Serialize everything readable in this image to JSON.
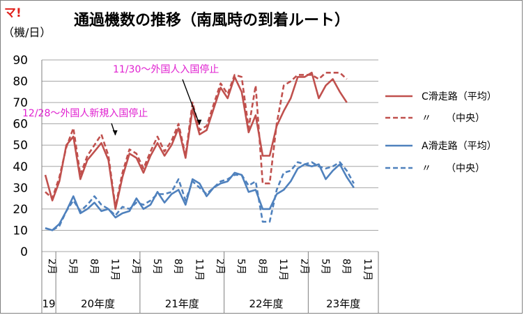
{
  "logo": "マ!",
  "unit": "（機/日）",
  "colors": {
    "c_runway": "#c0504d",
    "a_runway": "#4f81bd",
    "annotation": "#e020d0",
    "grid": "#a6a6a6"
  },
  "chart_data": {
    "type": "line",
    "title": "通過機数の推移（南風時の到着ルート）",
    "ylabel": "（機/日）",
    "ylim": [
      0,
      90
    ],
    "ytick_step": 10,
    "grid": true,
    "legend_position": "right",
    "x_tick_labels": [
      "2月",
      "5月",
      "8月",
      "11月",
      "2月",
      "5月",
      "8月",
      "11月",
      "2月",
      "5月",
      "8月",
      "11月",
      "2月",
      "5月",
      "8月",
      "11月"
    ],
    "fiscal_years": [
      "19",
      "20年度",
      "21年度",
      "22年度",
      "23年度"
    ],
    "months_index_note": "index 0 = Feb 2020, index 47 = Jan 2024",
    "series": [
      {
        "name": "C滑走路（平均）",
        "style": "solid",
        "color": "#c0504d",
        "values": [
          36,
          24,
          33,
          50,
          54,
          34,
          43,
          47,
          51,
          43,
          20,
          35,
          46,
          44,
          37,
          45,
          51,
          45,
          50,
          58,
          44,
          67,
          55,
          57,
          67,
          77,
          72,
          82,
          75,
          56,
          64,
          45,
          45,
          59,
          66,
          72,
          82,
          82,
          84,
          72,
          78,
          81,
          75,
          70
        ]
      },
      {
        "name": "〃　　（中央）",
        "style": "dashed",
        "color": "#c0504d",
        "values": [
          28,
          25,
          35,
          49,
          58,
          36,
          45,
          50,
          55,
          45,
          21,
          37,
          48,
          46,
          39,
          47,
          54,
          47,
          52,
          60,
          45,
          70,
          57,
          59,
          69,
          79,
          74,
          83,
          82,
          58,
          78,
          32,
          32,
          60,
          78,
          80,
          83,
          83,
          83,
          81,
          84,
          84,
          84,
          81
        ]
      },
      {
        "name": "A滑走路（平均）",
        "style": "solid",
        "color": "#4f81bd",
        "values": [
          11,
          10,
          13,
          19,
          26,
          18,
          20,
          23,
          19,
          20,
          16,
          18,
          19,
          25,
          20,
          22,
          28,
          23,
          27,
          29,
          22,
          34,
          32,
          26,
          30,
          32,
          33,
          37,
          36,
          28,
          29,
          20,
          20,
          27,
          29,
          33,
          39,
          41,
          40,
          41,
          34,
          38,
          41,
          35,
          30
        ]
      },
      {
        "name": "〃　　（中央）",
        "style": "dashed",
        "color": "#4f81bd",
        "values": [
          11,
          10,
          12,
          19,
          24,
          19,
          22,
          26,
          22,
          20,
          17,
          21,
          20,
          23,
          22,
          24,
          27,
          27,
          28,
          34,
          24,
          33,
          30,
          27,
          30,
          33,
          34,
          36,
          36,
          31,
          33,
          14,
          14,
          29,
          37,
          38,
          42,
          41,
          42,
          40,
          39,
          40,
          42,
          38,
          32
        ]
      }
    ],
    "annotations": [
      {
        "text": "11/30〜外国人入国停止",
        "index": 22,
        "value": 59
      },
      {
        "text": "12/28〜外国人新規入国停止",
        "index": 10,
        "value": 54
      }
    ]
  }
}
